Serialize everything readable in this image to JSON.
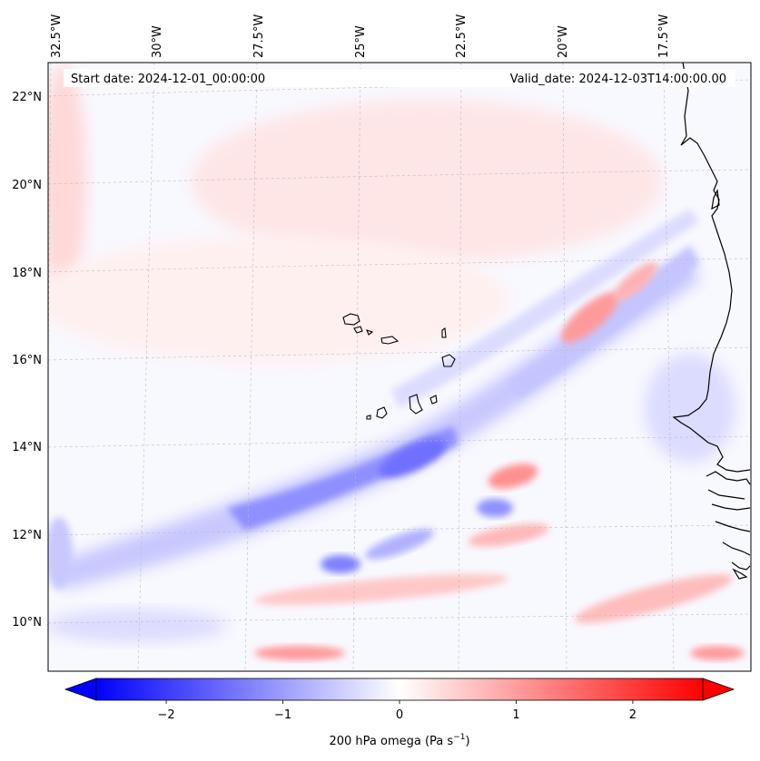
{
  "map": {
    "start_date_label": "Start date: 2024-12-01_00:00:00",
    "valid_date_label": "Valid_date: 2024-12-03T14:00:00.00",
    "lon_labels": [
      "32.5°W",
      "30°W",
      "27.5°W",
      "25°W",
      "22.5°W",
      "20°W",
      "17.5°W"
    ],
    "lat_labels": [
      "22°N",
      "20°N",
      "18°N",
      "16°N",
      "14°N",
      "12°N",
      "10°N"
    ],
    "field": "200 hPa omega",
    "coastline_color": "#000000",
    "gridline_color": "#bbbbbb"
  },
  "colorbar": {
    "label": "200 hPa omega (Pa s",
    "unit_superscript": "−1",
    "label_close": ")",
    "ticks": [
      "−2",
      "−1",
      "0",
      "1",
      "2"
    ],
    "tick_values": [
      -2,
      -1,
      0,
      1,
      2
    ],
    "range": [
      -2.6,
      2.6
    ],
    "extend": "both",
    "cmap": "bwr",
    "colors": {
      "min": "#0000ff",
      "mid": "#ffffff",
      "max": "#ff0000"
    }
  }
}
